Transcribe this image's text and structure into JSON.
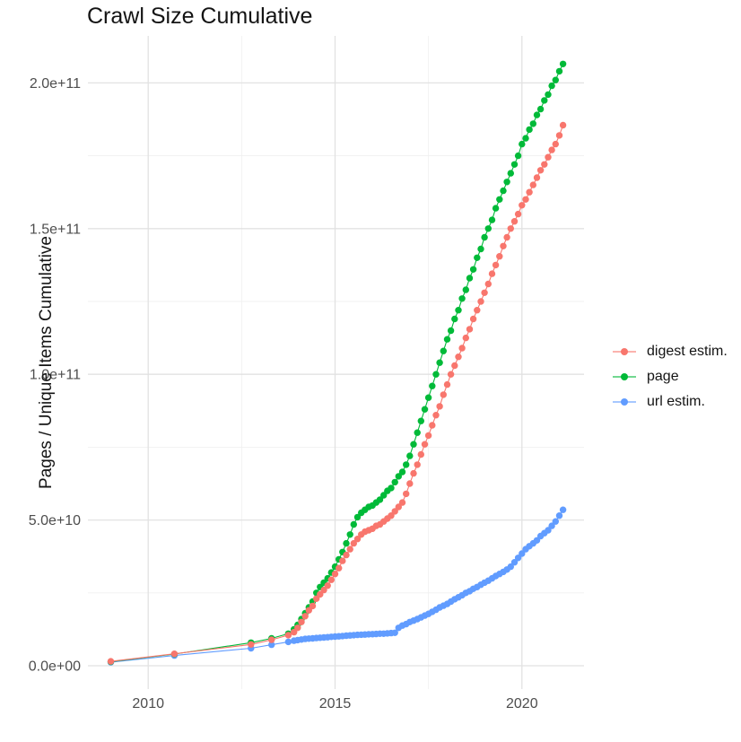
{
  "title": "Crawl Size Cumulative",
  "axes": {
    "y_title": "Pages / Unique Items Cumulative",
    "x_ticks": [
      {
        "value": 2010,
        "label": "2010"
      },
      {
        "value": 2015,
        "label": "2015"
      },
      {
        "value": 2020,
        "label": "2020"
      }
    ],
    "y_ticks": [
      {
        "value": 0,
        "label": "0.0e+00"
      },
      {
        "value": 50000000000.0,
        "label": "5.0e+10"
      },
      {
        "value": 100000000000.0,
        "label": "1.0e+11"
      },
      {
        "value": 150000000000.0,
        "label": "1.5e+11"
      },
      {
        "value": 200000000000.0,
        "label": "2.0e+11"
      }
    ],
    "x_minor": [
      2012.5,
      2017.5
    ],
    "y_minor": [
      25000000000.0,
      75000000000.0,
      125000000000.0,
      175000000000.0
    ]
  },
  "legend": {
    "position": "right",
    "items": [
      {
        "id": "digest-estim",
        "label": "digest estim.",
        "color": "#F8766D"
      },
      {
        "id": "page",
        "label": "page",
        "color": "#00BA38"
      },
      {
        "id": "url-estim",
        "label": "url estim.",
        "color": "#619CFF"
      }
    ]
  },
  "colors": {
    "background": "#ffffff",
    "grid_major": "#E2E2E2",
    "grid_minor": "#F0F0F0",
    "tick_text": "#4D4D4D",
    "title_text": "#141414"
  },
  "chart_data": {
    "type": "scatter",
    "title": "Crawl Size Cumulative",
    "xlabel": "",
    "ylabel": "Pages / Unique Items Cumulative",
    "xlim": [
      2008.4,
      2021.8
    ],
    "ylim": [
      -9000000000.0,
      217000000000.0
    ],
    "grid": "major+minor",
    "legend_position": "right",
    "series": [
      {
        "id": "digest-estim",
        "name": "digest estim.",
        "color": "#F8766D",
        "points": [
          [
            2009,
            1500000000.0
          ],
          [
            2010.7,
            4100000000.0
          ],
          [
            2012.75,
            7300000000.0
          ],
          [
            2013.3,
            8900000000.0
          ],
          [
            2013.75,
            10500000000.0
          ],
          [
            2013.9,
            11500000000.0
          ],
          [
            2014,
            13000000000.0
          ],
          [
            2014.1,
            15000000000.0
          ],
          [
            2014.2,
            17000000000.0
          ],
          [
            2014.3,
            19000000000.0
          ],
          [
            2014.4,
            20500000000.0
          ],
          [
            2014.5,
            23000000000.0
          ],
          [
            2014.6,
            24500000000.0
          ],
          [
            2014.7,
            26000000000.0
          ],
          [
            2014.8,
            27500000000.0
          ],
          [
            2014.9,
            29500000000.0
          ],
          [
            2015,
            31500000000.0
          ],
          [
            2015.1,
            33500000000.0
          ],
          [
            2015.2,
            36000000000.0
          ],
          [
            2015.3,
            38000000000.0
          ],
          [
            2015.4,
            40000000000.0
          ],
          [
            2015.5,
            42000000000.0
          ],
          [
            2015.6,
            43500000000.0
          ],
          [
            2015.7,
            45000000000.0
          ],
          [
            2015.8,
            46000000000.0
          ],
          [
            2015.9,
            46500000000.0
          ],
          [
            2016,
            47000000000.0
          ],
          [
            2016.1,
            48000000000.0
          ],
          [
            2016.2,
            48500000000.0
          ],
          [
            2016.3,
            49500000000.0
          ],
          [
            2016.4,
            50500000000.0
          ],
          [
            2016.5,
            51500000000.0
          ],
          [
            2016.6,
            53000000000.0
          ],
          [
            2016.7,
            54500000000.0
          ],
          [
            2016.8,
            56000000000.0
          ],
          [
            2016.9,
            59000000000.0
          ],
          [
            2017,
            62500000000.0
          ],
          [
            2017.1,
            66000000000.0
          ],
          [
            2017.2,
            69000000000.0
          ],
          [
            2017.3,
            72500000000.0
          ],
          [
            2017.4,
            76000000000.0
          ],
          [
            2017.5,
            79000000000.0
          ],
          [
            2017.6,
            82500000000.0
          ],
          [
            2017.7,
            86000000000.0
          ],
          [
            2017.8,
            89000000000.0
          ],
          [
            2017.9,
            93000000000.0
          ],
          [
            2018,
            96500000000.0
          ],
          [
            2018.1,
            100000000000.0
          ],
          [
            2018.2,
            103000000000.0
          ],
          [
            2018.3,
            106000000000.0
          ],
          [
            2018.4,
            109000000000.0
          ],
          [
            2018.5,
            112500000000.0
          ],
          [
            2018.6,
            115500000000.0
          ],
          [
            2018.7,
            119000000000.0
          ],
          [
            2018.8,
            122000000000.0
          ],
          [
            2018.9,
            125000000000.0
          ],
          [
            2019,
            128000000000.0
          ],
          [
            2019.1,
            131000000000.0
          ],
          [
            2019.2,
            134500000000.0
          ],
          [
            2019.3,
            137500000000.0
          ],
          [
            2019.4,
            140500000000.0
          ],
          [
            2019.5,
            144000000000.0
          ],
          [
            2019.6,
            147000000000.0
          ],
          [
            2019.7,
            150000000000.0
          ],
          [
            2019.8,
            152500000000.0
          ],
          [
            2019.9,
            155000000000.0
          ],
          [
            2020,
            158000000000.0
          ],
          [
            2020.1,
            160000000000.0
          ],
          [
            2020.2,
            162500000000.0
          ],
          [
            2020.3,
            165000000000.0
          ],
          [
            2020.4,
            167500000000.0
          ],
          [
            2020.5,
            170000000000.0
          ],
          [
            2020.6,
            172000000000.0
          ],
          [
            2020.7,
            174500000000.0
          ],
          [
            2020.8,
            177000000000.0
          ],
          [
            2020.9,
            179000000000.0
          ],
          [
            2021,
            182000000000.0
          ],
          [
            2021.1,
            185500000000.0
          ]
        ]
      },
      {
        "id": "page",
        "name": "page",
        "color": "#00BA38",
        "points": [
          [
            2009,
            1400000000.0
          ],
          [
            2010.7,
            4000000000.0
          ],
          [
            2012.75,
            7900000000.0
          ],
          [
            2013.3,
            9400000000.0
          ],
          [
            2013.75,
            11000000000.0
          ],
          [
            2013.9,
            12500000000.0
          ],
          [
            2014,
            14000000000.0
          ],
          [
            2014.1,
            16000000000.0
          ],
          [
            2014.2,
            18000000000.0
          ],
          [
            2014.3,
            20000000000.0
          ],
          [
            2014.4,
            22000000000.0
          ],
          [
            2014.5,
            25000000000.0
          ],
          [
            2014.6,
            27000000000.0
          ],
          [
            2014.7,
            28500000000.0
          ],
          [
            2014.8,
            30000000000.0
          ],
          [
            2014.9,
            32000000000.0
          ],
          [
            2015,
            34000000000.0
          ],
          [
            2015.1,
            36500000000.0
          ],
          [
            2015.2,
            39000000000.0
          ],
          [
            2015.3,
            42000000000.0
          ],
          [
            2015.4,
            45000000000.0
          ],
          [
            2015.5,
            48500000000.0
          ],
          [
            2015.6,
            51000000000.0
          ],
          [
            2015.7,
            52500000000.0
          ],
          [
            2015.8,
            53500000000.0
          ],
          [
            2015.9,
            54500000000.0
          ],
          [
            2016,
            55000000000.0
          ],
          [
            2016.1,
            56000000000.0
          ],
          [
            2016.2,
            57000000000.0
          ],
          [
            2016.3,
            58500000000.0
          ],
          [
            2016.4,
            60000000000.0
          ],
          [
            2016.5,
            61000000000.0
          ],
          [
            2016.6,
            63000000000.0
          ],
          [
            2016.7,
            65000000000.0
          ],
          [
            2016.8,
            66500000000.0
          ],
          [
            2016.9,
            69000000000.0
          ],
          [
            2017,
            72000000000.0
          ],
          [
            2017.1,
            76000000000.0
          ],
          [
            2017.2,
            80000000000.0
          ],
          [
            2017.3,
            84000000000.0
          ],
          [
            2017.4,
            88000000000.0
          ],
          [
            2017.5,
            92000000000.0
          ],
          [
            2017.6,
            96000000000.0
          ],
          [
            2017.7,
            100000000000.0
          ],
          [
            2017.8,
            104000000000.0
          ],
          [
            2017.9,
            108000000000.0
          ],
          [
            2018,
            112000000000.0
          ],
          [
            2018.1,
            115000000000.0
          ],
          [
            2018.2,
            119000000000.0
          ],
          [
            2018.3,
            122000000000.0
          ],
          [
            2018.4,
            126000000000.0
          ],
          [
            2018.5,
            129000000000.0
          ],
          [
            2018.6,
            133000000000.0
          ],
          [
            2018.7,
            136000000000.0
          ],
          [
            2018.8,
            140000000000.0
          ],
          [
            2018.9,
            143000000000.0
          ],
          [
            2019,
            147000000000.0
          ],
          [
            2019.1,
            150000000000.0
          ],
          [
            2019.2,
            153000000000.0
          ],
          [
            2019.3,
            157000000000.0
          ],
          [
            2019.4,
            160000000000.0
          ],
          [
            2019.5,
            163000000000.0
          ],
          [
            2019.6,
            166000000000.0
          ],
          [
            2019.7,
            169000000000.0
          ],
          [
            2019.8,
            172000000000.0
          ],
          [
            2019.9,
            175000000000.0
          ],
          [
            2020,
            179000000000.0
          ],
          [
            2020.1,
            181000000000.0
          ],
          [
            2020.2,
            184000000000.0
          ],
          [
            2020.3,
            186000000000.0
          ],
          [
            2020.4,
            189000000000.0
          ],
          [
            2020.5,
            191000000000.0
          ],
          [
            2020.6,
            194000000000.0
          ],
          [
            2020.7,
            196000000000.0
          ],
          [
            2020.8,
            199000000000.0
          ],
          [
            2020.9,
            201000000000.0
          ],
          [
            2021,
            204000000000.0
          ],
          [
            2021.1,
            206500000000.0
          ]
        ]
      },
      {
        "id": "url-estim",
        "name": "url estim.",
        "color": "#619CFF",
        "points": [
          [
            2009,
            1200000000.0
          ],
          [
            2010.7,
            3500000000.0
          ],
          [
            2012.75,
            6000000000.0
          ],
          [
            2013.3,
            7200000000.0
          ],
          [
            2013.75,
            8200000000.0
          ],
          [
            2013.9,
            8600000000.0
          ],
          [
            2014,
            8800000000.0
          ],
          [
            2014.1,
            9000000000.0
          ],
          [
            2014.2,
            9200000000.0
          ],
          [
            2014.3,
            9300000000.0
          ],
          [
            2014.4,
            9400000000.0
          ],
          [
            2014.5,
            9500000000.0
          ],
          [
            2014.6,
            9600000000.0
          ],
          [
            2014.7,
            9700000000.0
          ],
          [
            2014.8,
            9800000000.0
          ],
          [
            2014.9,
            9900000000.0
          ],
          [
            2015,
            10000000000.0
          ],
          [
            2015.1,
            10100000000.0
          ],
          [
            2015.2,
            10200000000.0
          ],
          [
            2015.3,
            10300000000.0
          ],
          [
            2015.4,
            10400000000.0
          ],
          [
            2015.5,
            10500000000.0
          ],
          [
            2015.6,
            10600000000.0
          ],
          [
            2015.7,
            10650000000.0
          ],
          [
            2015.8,
            10700000000.0
          ],
          [
            2015.9,
            10800000000.0
          ],
          [
            2016,
            10850000000.0
          ],
          [
            2016.1,
            10900000000.0
          ],
          [
            2016.2,
            11000000000.0
          ],
          [
            2016.3,
            11000000000.0
          ],
          [
            2016.4,
            11100000000.0
          ],
          [
            2016.5,
            11200000000.0
          ],
          [
            2016.6,
            11300000000.0
          ],
          [
            2016.7,
            13000000000.0
          ],
          [
            2016.8,
            13800000000.0
          ],
          [
            2016.9,
            14300000000.0
          ],
          [
            2017,
            15000000000.0
          ],
          [
            2017.1,
            15500000000.0
          ],
          [
            2017.2,
            16000000000.0
          ],
          [
            2017.3,
            16600000000.0
          ],
          [
            2017.4,
            17200000000.0
          ],
          [
            2017.5,
            17800000000.0
          ],
          [
            2017.6,
            18500000000.0
          ],
          [
            2017.7,
            19200000000.0
          ],
          [
            2017.8,
            20000000000.0
          ],
          [
            2017.9,
            20600000000.0
          ],
          [
            2018,
            21200000000.0
          ],
          [
            2018.1,
            22000000000.0
          ],
          [
            2018.2,
            22800000000.0
          ],
          [
            2018.3,
            23500000000.0
          ],
          [
            2018.4,
            24200000000.0
          ],
          [
            2018.5,
            25000000000.0
          ],
          [
            2018.6,
            25600000000.0
          ],
          [
            2018.7,
            26400000000.0
          ],
          [
            2018.8,
            27000000000.0
          ],
          [
            2018.9,
            27800000000.0
          ],
          [
            2019,
            28500000000.0
          ],
          [
            2019.1,
            29200000000.0
          ],
          [
            2019.2,
            30000000000.0
          ],
          [
            2019.3,
            30800000000.0
          ],
          [
            2019.4,
            31500000000.0
          ],
          [
            2019.5,
            32200000000.0
          ],
          [
            2019.6,
            33000000000.0
          ],
          [
            2019.7,
            34000000000.0
          ],
          [
            2019.8,
            35500000000.0
          ],
          [
            2019.9,
            37000000000.0
          ],
          [
            2020,
            38500000000.0
          ],
          [
            2020.1,
            40000000000.0
          ],
          [
            2020.2,
            41000000000.0
          ],
          [
            2020.3,
            42000000000.0
          ],
          [
            2020.4,
            43000000000.0
          ],
          [
            2020.5,
            44500000000.0
          ],
          [
            2020.6,
            45500000000.0
          ],
          [
            2020.7,
            46500000000.0
          ],
          [
            2020.8,
            48000000000.0
          ],
          [
            2020.9,
            49500000000.0
          ],
          [
            2021,
            51500000000.0
          ],
          [
            2021.1,
            53500000000.0
          ]
        ]
      }
    ]
  }
}
